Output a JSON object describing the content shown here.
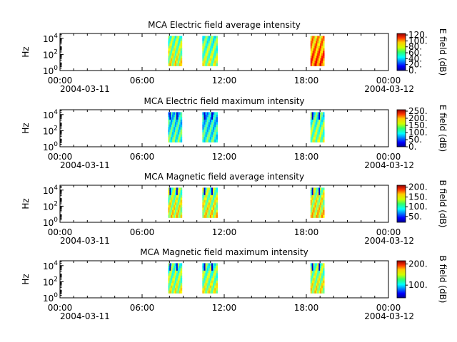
{
  "colors": {
    "axis": "#000000",
    "background": "#ffffff",
    "colormap": "jet"
  },
  "chart_data": [
    {
      "type": "heatmap",
      "title": "MCA  Electric field average intensity",
      "ylabel": "Hz",
      "colorbar_label": "E field (dB)",
      "colorbar_range": [
        0,
        125
      ],
      "colorbar_ticks": [
        "0.",
        "20.",
        "40.",
        "60.",
        "80.",
        "100.",
        "120."
      ],
      "colorbar_tick_values": [
        0,
        20,
        40,
        60,
        80,
        100,
        120
      ],
      "x_ticks": [
        "00:00",
        "06:00",
        "12:00",
        "18:00",
        "00:00"
      ],
      "x_tick_hours": [
        0,
        6,
        12,
        18,
        24
      ],
      "x_dates": [
        "2004-03-11",
        "2004-03-12"
      ],
      "y_ticks": [
        "10^0",
        "10^2",
        "10^4"
      ],
      "y_tick_exponents": [
        0,
        2,
        4
      ],
      "xlim_hours": [
        0,
        24
      ],
      "ylim_log10_hz": [
        0,
        4.6
      ],
      "blocks": [
        {
          "start_hour": 7.9,
          "end_hour": 8.9,
          "band_low_log10": 0.6,
          "band_high_log10": 4.3,
          "level": 60
        },
        {
          "start_hour": 10.4,
          "end_hour": 11.5,
          "band_low_log10": 0.6,
          "band_high_log10": 4.3,
          "level": 55
        },
        {
          "start_hour": 18.3,
          "end_hour": 19.3,
          "band_low_log10": 0.6,
          "band_high_log10": 4.3,
          "level": 85
        }
      ]
    },
    {
      "type": "heatmap",
      "title": "MCA  Electric field maximum intensity",
      "ylabel": "Hz",
      "colorbar_label": "E field (dB)",
      "colorbar_range": [
        0,
        260
      ],
      "colorbar_ticks": [
        "0.",
        "50.",
        "100.",
        "150.",
        "200.",
        "250."
      ],
      "colorbar_tick_values": [
        0,
        50,
        100,
        150,
        200,
        250
      ],
      "x_ticks": [
        "00:00",
        "06:00",
        "12:00",
        "18:00",
        "00:00"
      ],
      "x_tick_hours": [
        0,
        6,
        12,
        18,
        24
      ],
      "x_dates": [
        "2004-03-11",
        "2004-03-12"
      ],
      "y_ticks": [
        "10^0",
        "10^2",
        "10^4"
      ],
      "y_tick_exponents": [
        0,
        2,
        4
      ],
      "xlim_hours": [
        0,
        24
      ],
      "ylim_log10_hz": [
        0,
        4.6
      ],
      "blocks": [
        {
          "start_hour": 7.9,
          "end_hour": 8.9,
          "band_low_log10": 0.6,
          "band_high_log10": 4.3,
          "level": 90
        },
        {
          "start_hour": 10.4,
          "end_hour": 11.5,
          "band_low_log10": 0.6,
          "band_high_log10": 4.3,
          "level": 85
        },
        {
          "start_hour": 18.3,
          "end_hour": 19.3,
          "band_low_log10": 0.6,
          "band_high_log10": 4.3,
          "level": 110
        }
      ]
    },
    {
      "type": "heatmap",
      "title": "MCA  Magnetic field average intensity",
      "ylabel": "Hz",
      "colorbar_label": "B field (dB)",
      "colorbar_range": [
        20,
        210
      ],
      "colorbar_ticks": [
        "50.",
        "100.",
        "150.",
        "200."
      ],
      "colorbar_tick_values": [
        50,
        100,
        150,
        200
      ],
      "x_ticks": [
        "00:00",
        "06:00",
        "12:00",
        "18:00",
        "00:00"
      ],
      "x_tick_hours": [
        0,
        6,
        12,
        18,
        24
      ],
      "x_dates": [
        "2004-03-11",
        "2004-03-12"
      ],
      "y_ticks": [
        "10^0",
        "10^2",
        "10^4"
      ],
      "y_tick_exponents": [
        0,
        2,
        4
      ],
      "xlim_hours": [
        0,
        24
      ],
      "ylim_log10_hz": [
        0,
        4.6
      ],
      "blocks": [
        {
          "start_hour": 7.9,
          "end_hour": 8.9,
          "band_low_log10": 0.6,
          "band_high_log10": 4.3,
          "level": 115
        },
        {
          "start_hour": 10.4,
          "end_hour": 11.5,
          "band_low_log10": 0.6,
          "band_high_log10": 4.3,
          "level": 115
        },
        {
          "start_hour": 18.3,
          "end_hour": 19.3,
          "band_low_log10": 0.6,
          "band_high_log10": 4.3,
          "level": 120
        }
      ]
    },
    {
      "type": "heatmap",
      "title": "MCA  Magnetic field maximum intensity",
      "ylabel": "Hz",
      "colorbar_label": "B field (dB)",
      "colorbar_range": [
        40,
        215
      ],
      "colorbar_ticks": [
        "100.",
        "200."
      ],
      "colorbar_tick_values": [
        100,
        200
      ],
      "x_ticks": [
        "00:00",
        "06:00",
        "12:00",
        "18:00",
        "00:00"
      ],
      "x_tick_hours": [
        0,
        6,
        12,
        18,
        24
      ],
      "x_dates": [
        "2004-03-11",
        "2004-03-12"
      ],
      "y_ticks": [
        "10^0",
        "10^2",
        "10^4"
      ],
      "y_tick_exponents": [
        0,
        2,
        4
      ],
      "xlim_hours": [
        0,
        24
      ],
      "ylim_log10_hz": [
        0,
        4.6
      ],
      "blocks": [
        {
          "start_hour": 7.9,
          "end_hour": 8.9,
          "band_low_log10": 0.6,
          "band_high_log10": 4.3,
          "level": 120
        },
        {
          "start_hour": 10.4,
          "end_hour": 11.5,
          "band_low_log10": 0.6,
          "band_high_log10": 4.3,
          "level": 120
        },
        {
          "start_hour": 18.3,
          "end_hour": 19.3,
          "band_low_log10": 0.6,
          "band_high_log10": 4.3,
          "level": 125
        }
      ]
    }
  ]
}
